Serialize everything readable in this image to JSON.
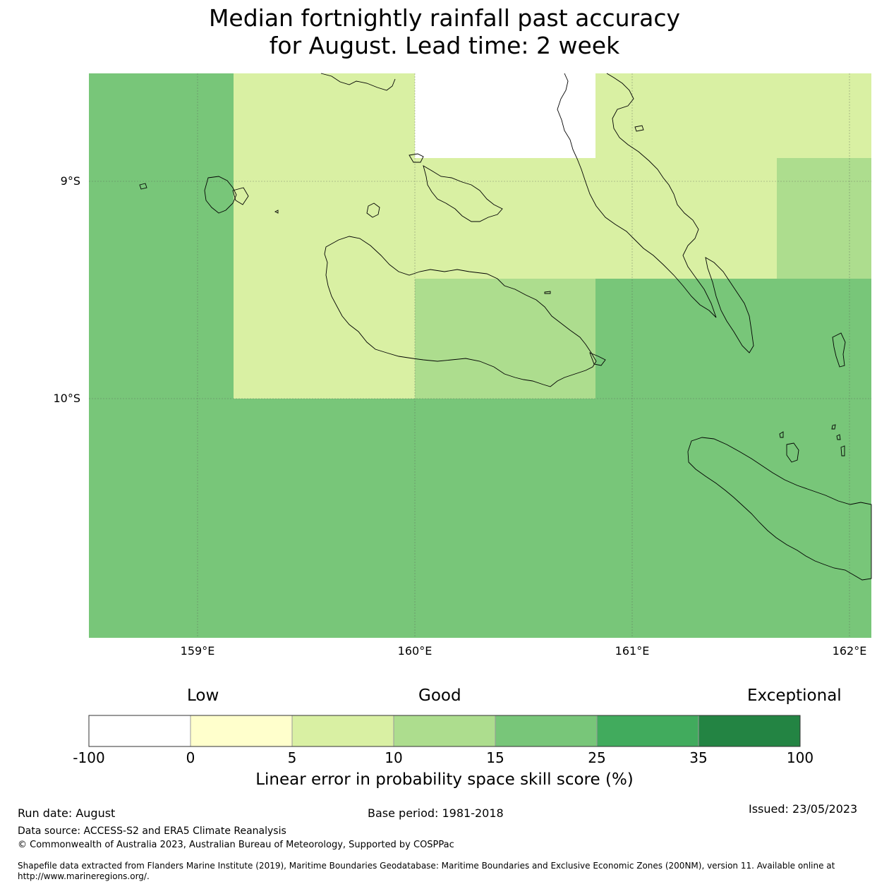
{
  "title": {
    "line1": "Median fortnightly rainfall past accuracy",
    "line2": "for August. Lead time: 2 week"
  },
  "map": {
    "lat_labels": [
      "9°S",
      "10°S"
    ],
    "lon_labels": [
      "159°E",
      "160°E",
      "161°E",
      "162°E"
    ],
    "colors": {
      "white": "#ffffff",
      "light_yellow": "#ffffcc",
      "yellow_green": "#d9f0a3",
      "light_green": "#addd8e",
      "green": "#78c679",
      "mid_green": "#41ab5d",
      "dark_green": "#238443"
    }
  },
  "colorbar": {
    "categories": [
      "Low",
      "Good",
      "Exceptional"
    ],
    "ticks": [
      "-100",
      "0",
      "5",
      "10",
      "15",
      "25",
      "35",
      "100"
    ],
    "colors": [
      "#ffffff",
      "#ffffcc",
      "#d9f0a3",
      "#addd8e",
      "#78c679",
      "#41ab5d",
      "#238443"
    ],
    "label": "Linear error in probability space skill score (%)"
  },
  "footer": {
    "run_date": "Run date: August",
    "base_period": "Base period: 1981-2018",
    "issued": "Issued: 23/05/2023",
    "data_source": "Data source: ACCESS-S2 and ERA5 Climate Reanalysis",
    "copyright": "© Commonwealth of Australia 2023, Australian Bureau of Meteorology, Supported by COSPPac",
    "shapefile": "Shapefile data extracted from Flanders Marine Institute (2019), Maritime Boundaries Geodatabase: Maritime Boundaries and Exclusive Economic Zones (200NM), version 11. Available online at http://www.marineregions.org/."
  }
}
